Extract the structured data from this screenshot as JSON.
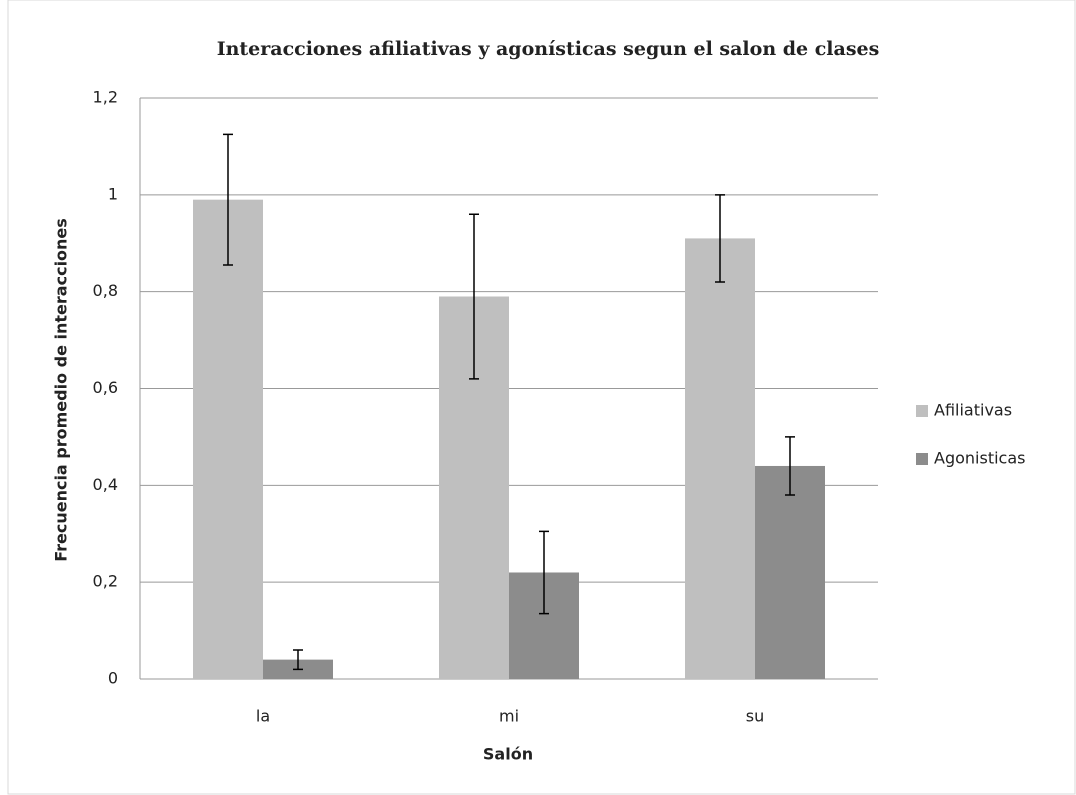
{
  "chart_data": {
    "type": "bar",
    "title": "Interacciones afiliativas y agonísticas segun el salon de clases",
    "x_label": "Salón",
    "y_label": "Frecuencia  promedio de interacciones",
    "categories": [
      "la",
      "mi",
      "su"
    ],
    "series": [
      {
        "name": "Afiliativas",
        "color": "#bfbfbf",
        "values": [
          0.99,
          0.79,
          0.91
        ],
        "errors": [
          0.135,
          0.17,
          0.09
        ]
      },
      {
        "name": "Agonisticas",
        "color": "#8c8c8c",
        "values": [
          0.04,
          0.22,
          0.44
        ],
        "errors": [
          0.02,
          0.085,
          0.06
        ]
      }
    ],
    "ylim": [
      0,
      1.2
    ],
    "yticks": [
      0,
      {
        "value": 0.2,
        "label": "0,2"
      },
      {
        "value": 0.4,
        "label": "0,4"
      },
      {
        "value": 0.6,
        "label": "0,6"
      },
      {
        "value": 0.8,
        "label": "0,8"
      },
      1,
      {
        "value": 1.2,
        "label": "1,2"
      }
    ],
    "grid": true,
    "legend": "right"
  }
}
